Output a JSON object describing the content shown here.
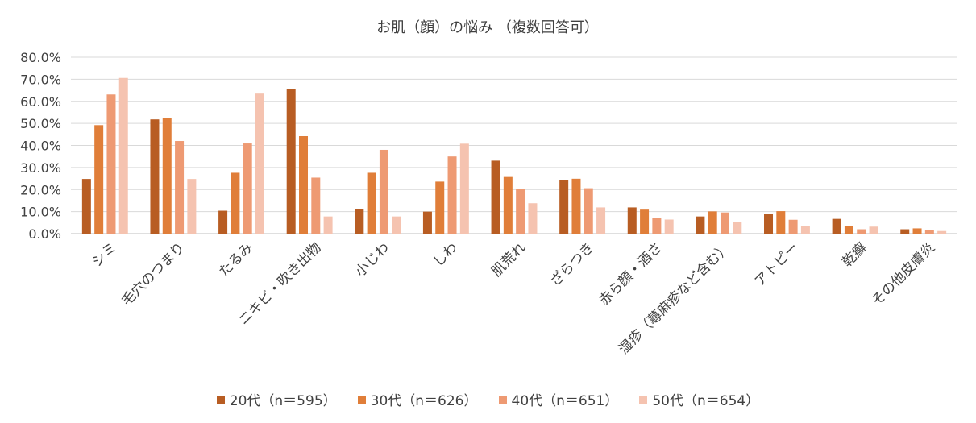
{
  "chart_data": {
    "type": "bar",
    "title": "お肌（顔）の悩み （複数回答可）",
    "xlabel": "",
    "ylabel": "",
    "ylim": [
      0,
      80
    ],
    "yticks": [
      "0.0%",
      "10.0%",
      "20.0%",
      "30.0%",
      "40.0%",
      "50.0%",
      "60.0%",
      "70.0%",
      "80.0%"
    ],
    "grid": true,
    "legend_position": "bottom",
    "categories": [
      "シミ",
      "毛穴のつまり",
      "たるみ",
      "ニキビ・吹き出物",
      "小じわ",
      "しわ",
      "肌荒れ",
      "ざらつき",
      "赤ら顔・酒さ",
      "湿疹（蕁麻疹など含む）",
      "アトピー",
      "乾癬",
      "その他皮膚炎"
    ],
    "series": [
      {
        "name": "20代（n＝595）",
        "color": "#b85d23",
        "values": [
          24.8,
          51.8,
          10.4,
          65.4,
          11.1,
          10.0,
          33.1,
          24.2,
          11.9,
          7.8,
          8.9,
          6.7,
          2.0
        ]
      },
      {
        "name": "30代（n＝626）",
        "color": "#e07e39",
        "values": [
          49.2,
          52.4,
          27.6,
          44.2,
          27.6,
          23.6,
          25.7,
          24.9,
          10.9,
          10.1,
          10.2,
          3.4,
          2.4
        ]
      },
      {
        "name": "40代（n＝651）",
        "color": "#ee9a73",
        "values": [
          63.1,
          42.0,
          40.9,
          25.4,
          38.0,
          35.0,
          20.4,
          20.6,
          7.1,
          9.6,
          6.3,
          2.0,
          1.7
        ]
      },
      {
        "name": "50代（n＝654）",
        "color": "#f5c3b0",
        "values": [
          70.6,
          24.8,
          63.5,
          7.8,
          7.8,
          40.8,
          13.8,
          11.9,
          6.4,
          5.4,
          3.4,
          3.2,
          1.2
        ]
      }
    ]
  }
}
